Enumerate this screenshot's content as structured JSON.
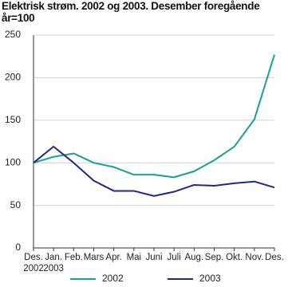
{
  "chart_data": {
    "type": "line",
    "title": "Elektrisk strøm. 2002 og 2003. Desember foregående år=100",
    "categories": [
      "Des. 2002",
      "Jan. 2003",
      "Feb.",
      "Mars",
      "Apr.",
      "Mai",
      "Juni",
      "Juli",
      "Aug.",
      "Sep.",
      "Okt.",
      "Nov.",
      "Des."
    ],
    "series": [
      {
        "name": "2002",
        "color": "#1b9e95",
        "values": [
          100,
          107,
          111,
          100,
          95,
          86,
          86,
          83,
          90,
          103,
          119,
          151,
          227
        ]
      },
      {
        "name": "2003",
        "color": "#1f2a7c",
        "values": [
          100,
          119,
          100,
          79,
          67,
          67,
          61,
          66,
          74,
          73,
          76,
          78,
          71
        ]
      }
    ],
    "ylim": [
      0,
      250
    ],
    "yticks": [
      0,
      50,
      100,
      150,
      200,
      250
    ],
    "grid": true
  }
}
